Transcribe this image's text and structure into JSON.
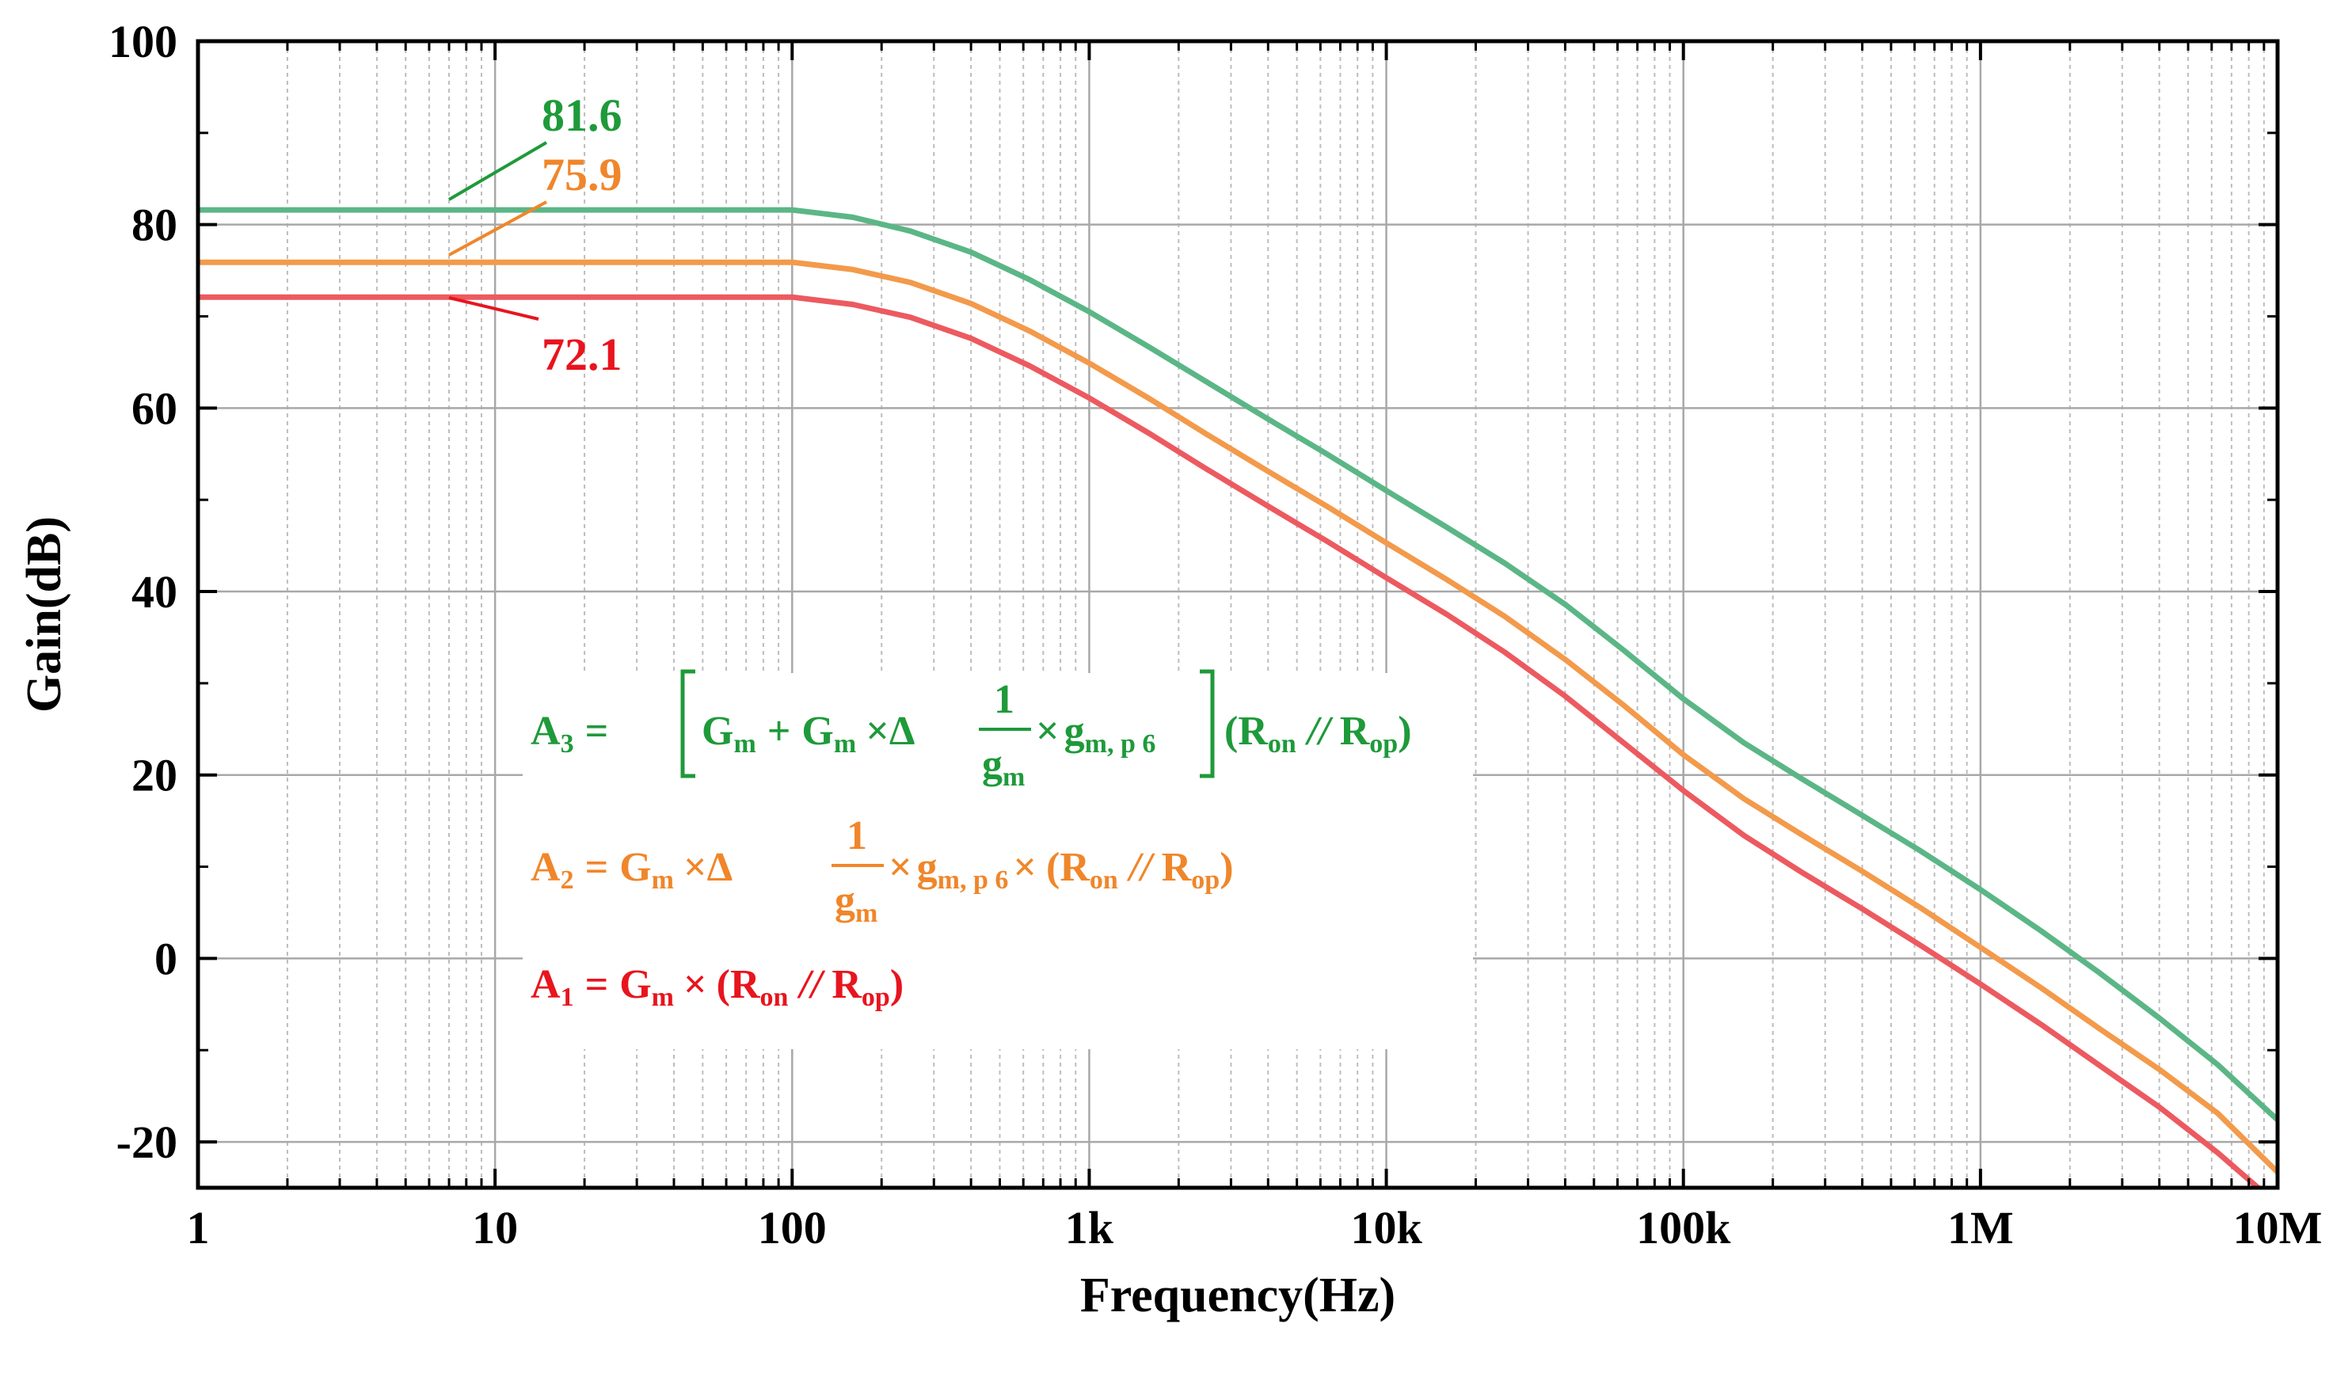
{
  "chart_data": {
    "type": "line",
    "xlabel": "Frequency(Hz)",
    "ylabel": "Gain(dB)",
    "xscale": "log",
    "xlim": [
      1,
      10000000
    ],
    "ylim": [
      -25,
      100
    ],
    "x_ticks": [
      1,
      10,
      100,
      1000,
      10000,
      100000,
      1000000,
      10000000
    ],
    "x_tick_labels": [
      "1",
      "10",
      "100",
      "1k",
      "10k",
      "100k",
      "1M",
      "10M"
    ],
    "y_ticks": [
      -20,
      0,
      20,
      40,
      60,
      80,
      100
    ],
    "y_tick_labels": [
      "-20",
      "0",
      "20",
      "40",
      "60",
      "80",
      "100"
    ],
    "grid": true,
    "series": [
      {
        "id": "A3",
        "color": "#5bb686",
        "x": [
          1,
          100,
          160,
          250,
          400,
          630,
          1000,
          1600,
          2500,
          4000,
          6300,
          10000,
          16000,
          25000,
          40000,
          63000,
          100000,
          160000,
          250000,
          400000,
          630000,
          1000000,
          1600000,
          2500000,
          4000000,
          6300000,
          10000000
        ],
        "y": [
          81.6,
          81.6,
          80.8,
          79.3,
          77.0,
          74.0,
          70.5,
          66.6,
          62.8,
          58.8,
          55.0,
          51.0,
          47.0,
          43.1,
          38.6,
          33.6,
          28.3,
          23.5,
          19.6,
          15.6,
          11.7,
          7.5,
          3.0,
          -1.5,
          -6.5,
          -11.6,
          -17.6
        ]
      },
      {
        "id": "A2",
        "color": "#f39a4b",
        "x": [
          1,
          100,
          160,
          250,
          400,
          630,
          1000,
          1600,
          2500,
          4000,
          6300,
          10000,
          16000,
          25000,
          40000,
          63000,
          100000,
          160000,
          250000,
          400000,
          630000,
          1000000,
          1600000,
          2500000,
          4000000,
          6300000,
          10000000
        ],
        "y": [
          75.9,
          75.9,
          75.1,
          73.7,
          71.4,
          68.4,
          64.9,
          61.0,
          57.1,
          53.1,
          49.3,
          45.3,
          41.3,
          37.3,
          32.6,
          27.6,
          22.2,
          17.4,
          13.5,
          9.5,
          5.5,
          1.2,
          -3.2,
          -7.6,
          -12.1,
          -16.9,
          -23.3
        ]
      },
      {
        "id": "A1",
        "color": "#ec5a60",
        "x": [
          1,
          100,
          160,
          250,
          400,
          630,
          1000,
          1600,
          2500,
          4000,
          6300,
          10000,
          16000,
          25000,
          40000,
          63000,
          100000,
          160000,
          250000,
          400000,
          630000,
          1000000,
          1600000,
          2500000,
          4000000,
          6300000,
          8600000
        ],
        "y": [
          72.1,
          72.1,
          71.3,
          69.9,
          67.6,
          64.6,
          61.1,
          57.2,
          53.3,
          49.3,
          45.5,
          41.5,
          37.5,
          33.4,
          28.6,
          23.5,
          18.3,
          13.4,
          9.4,
          5.4,
          1.4,
          -2.8,
          -7.2,
          -11.6,
          -16.2,
          -21.2,
          -25.0
        ]
      }
    ],
    "annotations": [
      {
        "text": "81.6",
        "color": "#1e9a3a",
        "series": "A3"
      },
      {
        "text": "75.9",
        "color": "#f0862a",
        "series": "A2"
      },
      {
        "text": "72.1",
        "color": "#e8141e",
        "series": "A1"
      }
    ],
    "equations": {
      "a3": {
        "color": "#1e9a3a",
        "A": "A",
        "A_sub": "3",
        "eq": "=",
        "G1": "G",
        "G1_sub": "m",
        "plus": "+",
        "G2": "G",
        "G2_sub": "m",
        "times1": "×",
        "delta": "Δ",
        "frac_num": "1",
        "frac_den": "g",
        "frac_den_sub": "m",
        "times2": "×",
        "gm": "g",
        "gm_sub": "m, p 6",
        "R1": "R",
        "R1_sub": "on",
        "par": "//",
        "R2": "R",
        "R2_sub": "op"
      },
      "a2": {
        "color": "#f0862a",
        "A": "A",
        "A_sub": "2",
        "eq": "=",
        "G1": "G",
        "G1_sub": "m",
        "times1": "×",
        "delta": "Δ",
        "frac_num": "1",
        "frac_den": "g",
        "frac_den_sub": "m",
        "times2": "×",
        "gm": "g",
        "gm_sub": "m, p 6",
        "times3": "×",
        "R1": "R",
        "R1_sub": "on",
        "par": "//",
        "R2": "R",
        "R2_sub": "op"
      },
      "a1": {
        "color": "#e8141e",
        "A": "A",
        "A_sub": "1",
        "eq": "=",
        "G1": "G",
        "G1_sub": "m",
        "times1": "×",
        "R1": "R",
        "R1_sub": "on",
        "par": "//",
        "R2": "R",
        "R2_sub": "op"
      }
    }
  }
}
